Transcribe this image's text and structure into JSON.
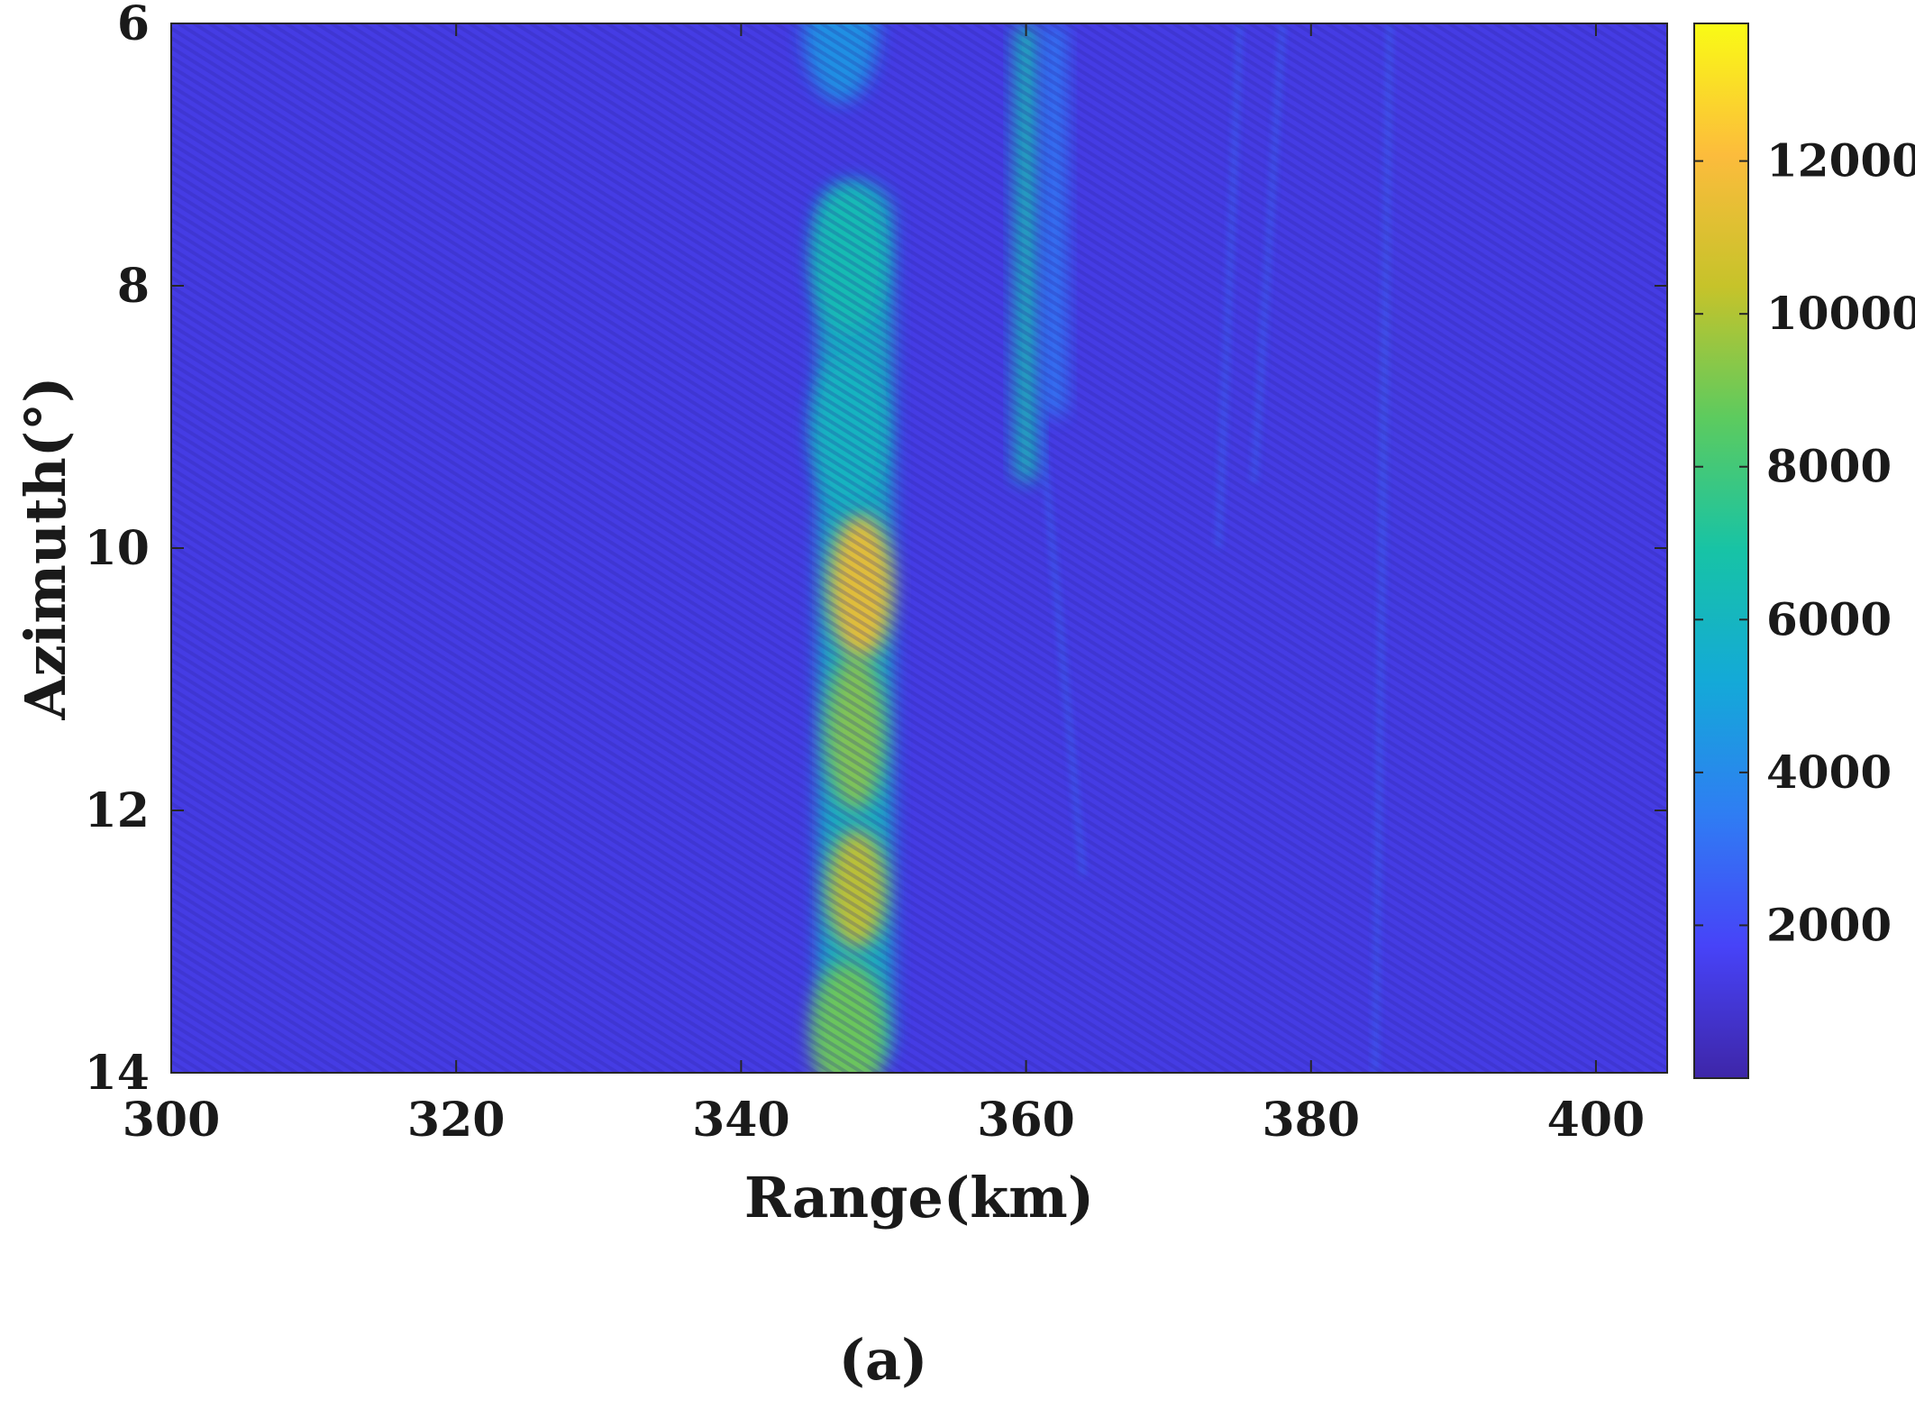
{
  "chart_data": {
    "type": "heatmap",
    "xlabel": "Range(km)",
    "ylabel": "Azimuth(°)",
    "xlim": [
      300,
      405
    ],
    "ylim": [
      6,
      14
    ],
    "y_direction": "reversed",
    "x_ticks": [
      300,
      320,
      340,
      360,
      380,
      400
    ],
    "y_ticks": [
      6,
      8,
      10,
      12,
      14
    ],
    "colorbar": {
      "colormap": "parula",
      "range": [
        0,
        13800
      ],
      "ticks": [
        2000,
        4000,
        6000,
        8000,
        10000,
        12000
      ],
      "colors": [
        "#3e26a8",
        "#4743f8",
        "#2f7df3",
        "#14a9d8",
        "#17c3a6",
        "#5ccb5f",
        "#c6c32a",
        "#fcbc3c",
        "#f9fb15"
      ]
    },
    "background_level": 1300,
    "features": [
      {
        "description": "main vertical ridge",
        "range_km": 348,
        "azimuth_from": 7.2,
        "azimuth_to": 14,
        "peak_level": 11500,
        "peak_azimuth": 10.3
      },
      {
        "description": "ridge blob",
        "range_km": 347.5,
        "azimuth": 7.8,
        "level": 6500
      },
      {
        "description": "ridge blob",
        "range_km": 347.5,
        "azimuth": 9.1,
        "level": 6000
      },
      {
        "description": "ridge end",
        "range_km": 347.5,
        "azimuth": 13.7,
        "level": 9000
      },
      {
        "description": "thin vertical streak",
        "range_km": 360,
        "azimuth_from": 6,
        "azimuth_to": 9.5,
        "level": 6500
      },
      {
        "description": "faint streak",
        "range_km": 362,
        "azimuth_from": 6,
        "azimuth_to": 9,
        "level": 3500
      },
      {
        "description": "top blob",
        "range_km": 347,
        "azimuth": 6.05,
        "level": 4500
      }
    ]
  },
  "caption": "(a)"
}
